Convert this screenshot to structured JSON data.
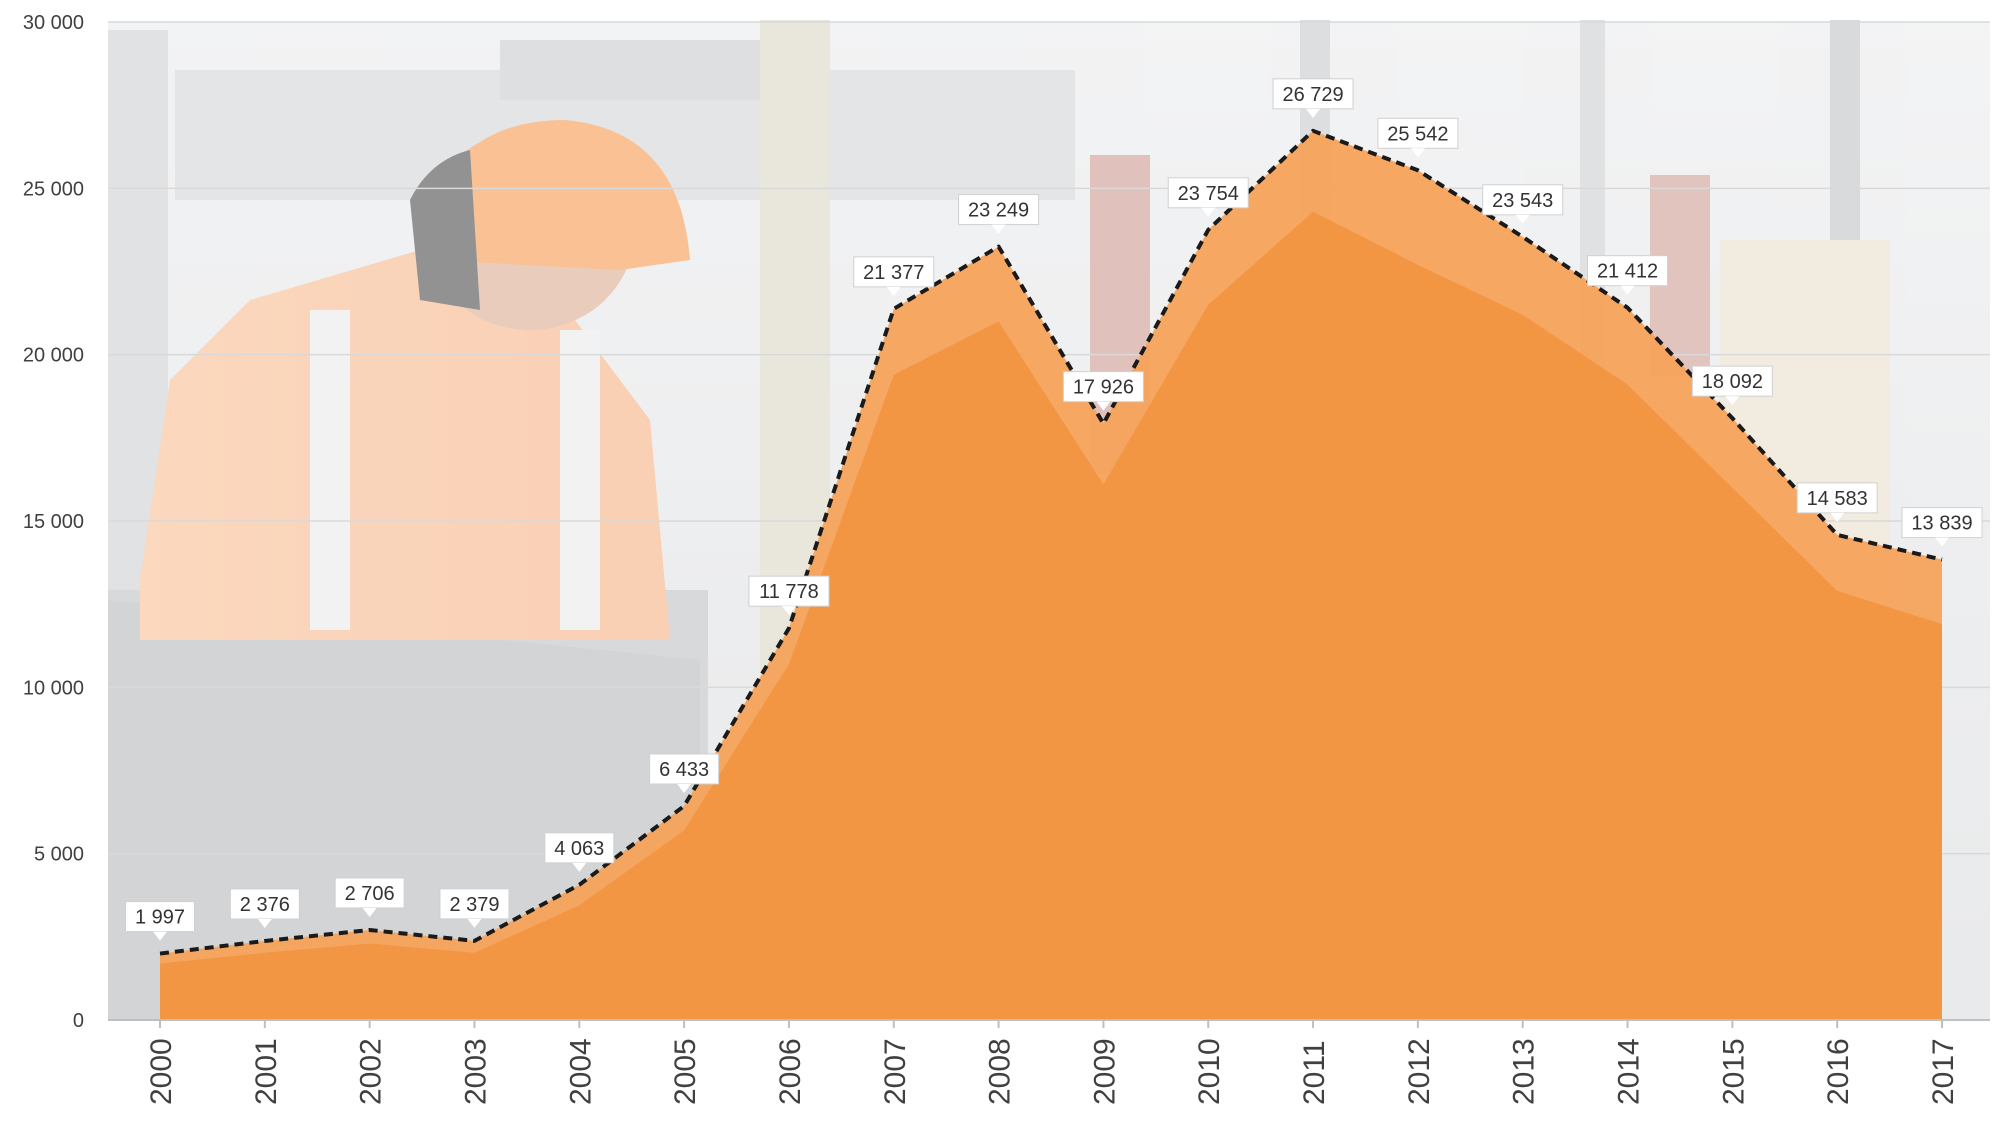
{
  "chart_data": {
    "type": "area",
    "x": [
      "2000",
      "2001",
      "2002",
      "2003",
      "2004",
      "2005",
      "2006",
      "2007",
      "2008",
      "2009",
      "2010",
      "2011",
      "2012",
      "2013",
      "2014",
      "2015",
      "2016",
      "2017"
    ],
    "series": [
      {
        "values": [
          1997,
          2376,
          2706,
          2379,
          4063,
          6433,
          11778,
          21377,
          23249,
          17926,
          23754,
          26729,
          25542,
          23543,
          21412,
          18092,
          14583,
          13839
        ],
        "data_labels": [
          "1 997",
          "2 376",
          "2 706",
          "2 379",
          "4 063",
          "6 433",
          "11 778",
          "21 377",
          "23 249",
          "17 926",
          "23 754",
          "26 729",
          "25 542",
          "23 543",
          "21 412",
          "18 092",
          "14 583",
          "13 839"
        ]
      },
      {
        "values": [
          1700,
          2020,
          2300,
          2020,
          3450,
          5700,
          10700,
          19400,
          21000,
          16100,
          21500,
          24300,
          22700,
          21200,
          19100,
          16000,
          12900,
          11900
        ]
      }
    ],
    "ylim": [
      0,
      30000
    ],
    "yticks": [
      0,
      5000,
      10000,
      15000,
      20000,
      25000,
      30000
    ],
    "ytick_labels": [
      "0",
      "5 000",
      "10 000",
      "15 000",
      "20 000",
      "25 000",
      "30 000"
    ],
    "grid": true,
    "colors": {
      "outer_area": "#f5a35b",
      "inner_area": "#f39644",
      "line": "#1a1a1a",
      "grid": "#d9d9d9",
      "label_box": "#ffffff"
    },
    "background_image": "construction-worker-photo"
  }
}
